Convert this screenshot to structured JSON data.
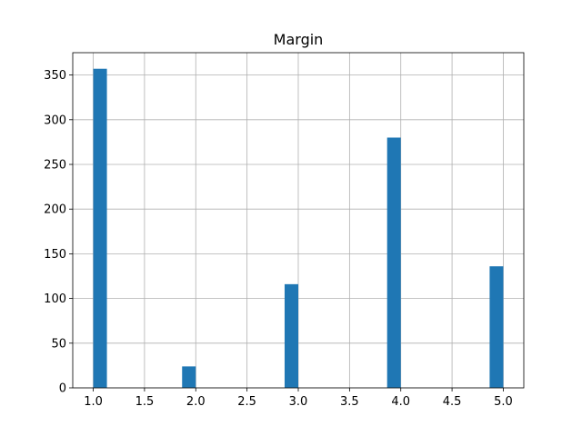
{
  "chart_data": {
    "type": "bar",
    "title": "Margin",
    "xlabel": "",
    "ylabel": "",
    "bins": [
      {
        "start": 1.0,
        "end": 1.1333,
        "value": 357
      },
      {
        "start": 1.8667,
        "end": 2.0,
        "value": 24
      },
      {
        "start": 2.8667,
        "end": 3.0,
        "value": 116
      },
      {
        "start": 3.8667,
        "end": 4.0,
        "value": 280
      },
      {
        "start": 4.8667,
        "end": 5.0,
        "value": 136
      }
    ],
    "xlim": [
      0.8,
      5.2
    ],
    "ylim": [
      0,
      375
    ],
    "xticks": [
      "1.0",
      "1.5",
      "2.0",
      "2.5",
      "3.0",
      "3.5",
      "4.0",
      "4.5",
      "5.0"
    ],
    "yticks": [
      "0",
      "50",
      "100",
      "150",
      "200",
      "250",
      "300",
      "350"
    ],
    "grid": true,
    "bar_color": "#1f77b4"
  }
}
